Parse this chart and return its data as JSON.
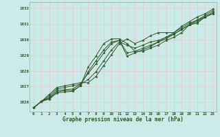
{
  "title": "Graphe pression niveau de la mer (hPa)",
  "bg_color": "#cceae7",
  "grid_color_major": "#f0a0a0",
  "grid_color_minor": "#e8d0d0",
  "line_color": "#2d5a27",
  "xlim": [
    -0.5,
    23.5
  ],
  "ylim": [
    1025.4,
    1032.4
  ],
  "yticks": [
    1026,
    1027,
    1028,
    1029,
    1030,
    1031,
    1032
  ],
  "xticks": [
    0,
    1,
    2,
    3,
    4,
    5,
    6,
    7,
    8,
    9,
    10,
    11,
    12,
    13,
    14,
    15,
    16,
    17,
    18,
    19,
    20,
    21,
    22,
    23
  ],
  "series": [
    [
      1025.65,
      1026.05,
      1026.2,
      1026.6,
      1026.65,
      1026.7,
      1027.05,
      1028.25,
      1028.95,
      1029.75,
      1030.05,
      1030.05,
      1029.75,
      1029.25,
      1029.25,
      1029.45,
      1029.65,
      1029.95,
      1030.15,
      1030.45,
      1030.95,
      1031.05,
      1031.45,
      1031.65
    ],
    [
      1025.65,
      1026.05,
      1026.25,
      1026.65,
      1026.75,
      1026.75,
      1027.05,
      1027.95,
      1028.65,
      1029.35,
      1029.85,
      1029.95,
      1029.15,
      1029.25,
      1029.45,
      1029.65,
      1029.85,
      1030.05,
      1030.35,
      1030.65,
      1030.95,
      1031.15,
      1031.45,
      1031.65
    ],
    [
      1025.65,
      1026.05,
      1026.3,
      1026.75,
      1026.8,
      1026.85,
      1027.15,
      1027.85,
      1028.45,
      1029.15,
      1029.75,
      1029.95,
      1028.95,
      1029.15,
      1029.35,
      1029.55,
      1029.85,
      1030.15,
      1030.35,
      1030.65,
      1030.95,
      1031.25,
      1031.45,
      1031.75
    ],
    [
      1025.65,
      1026.05,
      1026.4,
      1026.85,
      1026.95,
      1027.05,
      1027.15,
      1027.45,
      1027.95,
      1028.65,
      1029.35,
      1029.85,
      1029.65,
      1029.45,
      1029.65,
      1029.85,
      1029.95,
      1030.15,
      1030.45,
      1030.75,
      1031.05,
      1031.25,
      1031.55,
      1031.85
    ],
    [
      1025.65,
      1026.05,
      1026.5,
      1026.95,
      1027.05,
      1027.15,
      1027.25,
      1027.25,
      1027.65,
      1028.35,
      1029.05,
      1029.75,
      1030.05,
      1029.75,
      1029.95,
      1030.25,
      1030.45,
      1030.45,
      1030.45,
      1030.85,
      1031.15,
      1031.45,
      1031.65,
      1031.95
    ]
  ]
}
